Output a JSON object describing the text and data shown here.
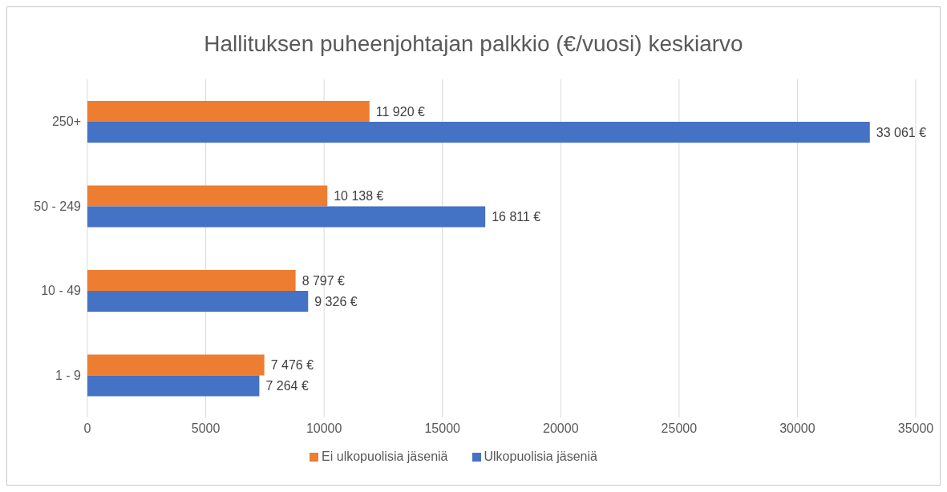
{
  "chart_data": {
    "type": "bar",
    "orientation": "horizontal",
    "title": "Hallituksen puheenjohtajan palkkio (€/vuosi) keskiarvo",
    "categories": [
      "250+",
      "50 - 249",
      "10 - 49",
      "1 - 9"
    ],
    "series": [
      {
        "name": "Ei ulkopuolisia jäseniä",
        "color": "#ed7d31",
        "values": [
          11920,
          10138,
          8797,
          7476
        ],
        "value_labels": [
          "11 920 €",
          "10 138 €",
          "8 797 €",
          "7 476 €"
        ]
      },
      {
        "name": "Ulkopuolisia jäseniä",
        "color": "#4472c4",
        "values": [
          33061,
          16811,
          9326,
          7264
        ],
        "value_labels": [
          "33 061 €",
          "16 811 €",
          "9 326 €",
          "7 264 €"
        ]
      }
    ],
    "xlim": [
      0,
      35000
    ],
    "xticks": [
      0,
      5000,
      10000,
      15000,
      20000,
      25000,
      30000,
      35000
    ],
    "grid": "x",
    "legend": "bottom"
  }
}
